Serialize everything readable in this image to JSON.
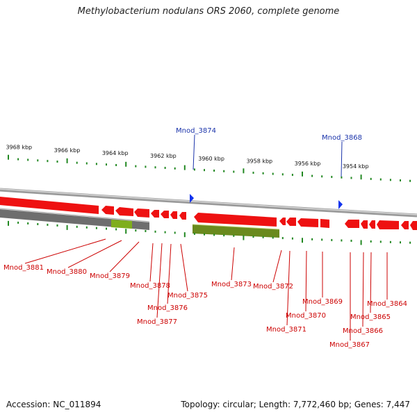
{
  "title": "Methylobacterium nodulans ORS 2060, complete genome",
  "accession_text": "Accession: NC_011894",
  "summary_text": "Topology: circular; Length: 7,772,460 bp; Genes: 7,447",
  "colors": {
    "gene_red": "#ee1111",
    "rna_blue": "#1133ee",
    "label_blue": "#1a33aa",
    "label_red": "#cc0000",
    "tick_green": "#228822",
    "pseudo_grey": "#707070",
    "olive": "#6d8c1e",
    "backbone": "#b4b4b4"
  },
  "kbp_labels": [
    {
      "text": "3968 kbp",
      "kbp": 3968
    },
    {
      "text": "3966 kbp",
      "kbp": 3966
    },
    {
      "text": "3964 kbp",
      "kbp": 3964
    },
    {
      "text": "3962 kbp",
      "kbp": 3962
    },
    {
      "text": "3960 kbp",
      "kbp": 3960
    },
    {
      "text": "3958 kbp",
      "kbp": 3958
    },
    {
      "text": "3956 kbp",
      "kbp": 3956
    },
    {
      "text": "3954 kbp",
      "kbp": 3954
    }
  ],
  "top_genes": [
    {
      "label": "Mnod_3874",
      "kbp": 3960.0
    },
    {
      "label": "Mnod_3868",
      "kbp": 3953.9
    }
  ],
  "bottom_genes": [
    {
      "label": "Mnod_3881",
      "kbp": 3964.1
    },
    {
      "label": "Mnod_3880",
      "kbp": 3963.8
    },
    {
      "label": "Mnod_3879",
      "kbp": 3963.5
    },
    {
      "label": "Mnod_3878",
      "kbp": 3962.9
    },
    {
      "label": "Mnod_3877",
      "kbp": 3962.4
    },
    {
      "label": "Mnod_3876",
      "kbp": 3962.1
    },
    {
      "label": "Mnod_3875",
      "kbp": 3961.6
    },
    {
      "label": "Mnod_3873",
      "kbp": 3958.9
    },
    {
      "label": "Mnod_3872",
      "kbp": 3956.2
    },
    {
      "label": "Mnod_3871",
      "kbp": 3955.8
    },
    {
      "label": "Mnod_3870",
      "kbp": 3955.6
    },
    {
      "label": "Mnod_3869",
      "kbp": 3955.3
    },
    {
      "label": "Mnod_3867",
      "kbp": 3953.9
    },
    {
      "label": "Mnod_3866",
      "kbp": 3953.5
    },
    {
      "label": "Mnod_3865",
      "kbp": 3953.4
    },
    {
      "label": "Mnod_3864",
      "kbp": 3953.2
    }
  ]
}
